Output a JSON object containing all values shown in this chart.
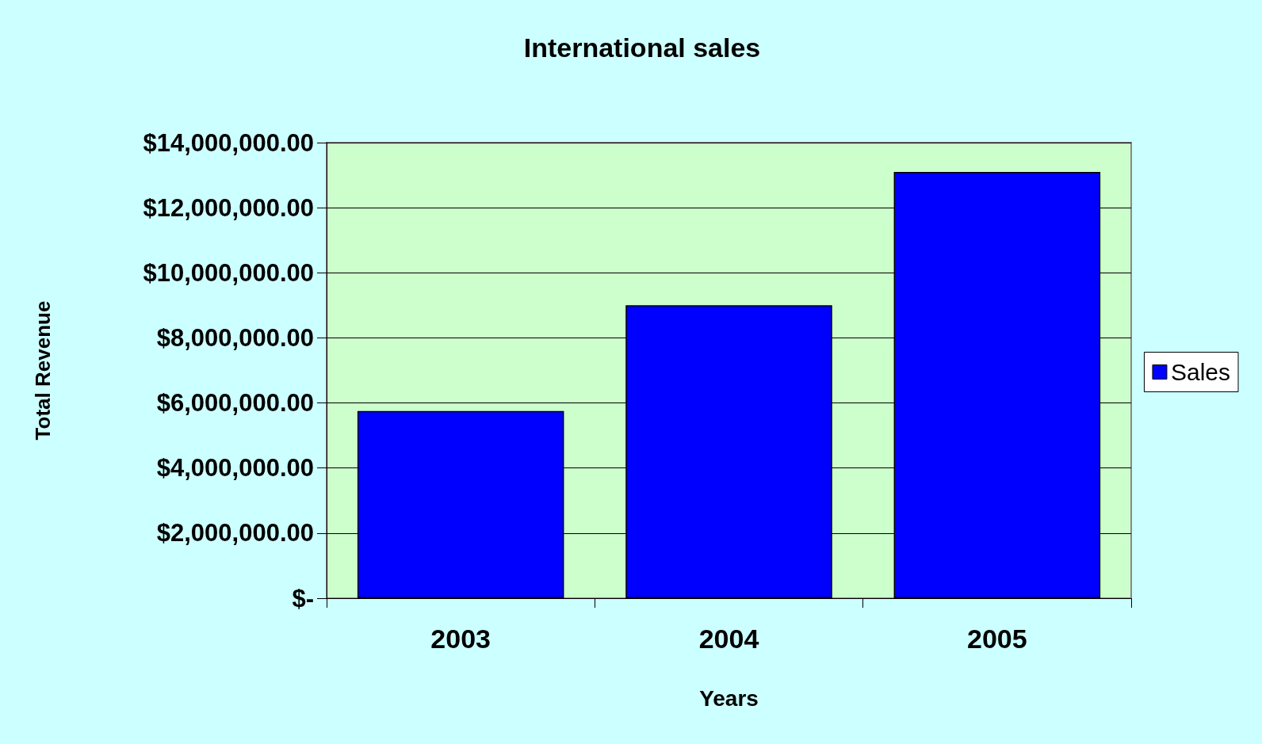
{
  "chart_data": {
    "type": "bar",
    "title": "International sales",
    "xlabel": "Years",
    "ylabel": "Total Revenue",
    "categories": [
      "2003",
      "2004",
      "2005"
    ],
    "series": [
      {
        "name": "Sales",
        "color": "#0000ff",
        "values": [
          5750000,
          9000000,
          13100000
        ]
      }
    ],
    "ylim": [
      0,
      14000000
    ],
    "yticks": [
      {
        "value": 0,
        "label": "$-"
      },
      {
        "value": 2000000,
        "label": "$2,000,000.00"
      },
      {
        "value": 4000000,
        "label": "$4,000,000.00"
      },
      {
        "value": 6000000,
        "label": "$6,000,000.00"
      },
      {
        "value": 8000000,
        "label": "$8,000,000.00"
      },
      {
        "value": 10000000,
        "label": "$10,000,000.00"
      },
      {
        "value": 12000000,
        "label": "$12,000,000.00"
      },
      {
        "value": 14000000,
        "label": "$14,000,000.00"
      }
    ],
    "bands": [
      {
        "axis": "y",
        "from": 0,
        "to": 14000000,
        "color": "#ccffcc"
      }
    ],
    "grid": "y",
    "legend": "right"
  }
}
